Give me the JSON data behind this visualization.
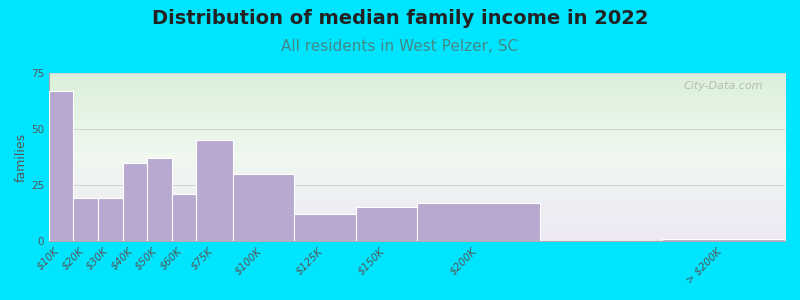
{
  "title": "Distribution of median family income in 2022",
  "subtitle": "All residents in West Pelzer, SC",
  "ylabel": "families",
  "categories": [
    "$10K",
    "$20K",
    "$30K",
    "$40K",
    "$50K",
    "$60K",
    "$75K",
    "$100K",
    "$125K",
    "$150K",
    "$200K",
    "> $200K"
  ],
  "values": [
    67,
    19,
    19,
    35,
    37,
    21,
    45,
    30,
    12,
    15,
    17,
    1
  ],
  "bar_color": "#b8a9d0",
  "bar_edgecolor": "#ffffff",
  "background_outer": "#00e5ff",
  "title_fontsize": 14,
  "subtitle_fontsize": 11,
  "subtitle_color": "#448888",
  "ylabel_fontsize": 9,
  "tick_fontsize": 7.5,
  "ylim": [
    0,
    75
  ],
  "yticks": [
    0,
    25,
    50,
    75
  ],
  "watermark": "City-Data.com",
  "bin_left": [
    0,
    10,
    20,
    30,
    40,
    50,
    60,
    75,
    100,
    125,
    150,
    250
  ],
  "bin_width": [
    10,
    10,
    10,
    10,
    10,
    10,
    15,
    25,
    25,
    25,
    50,
    50
  ]
}
